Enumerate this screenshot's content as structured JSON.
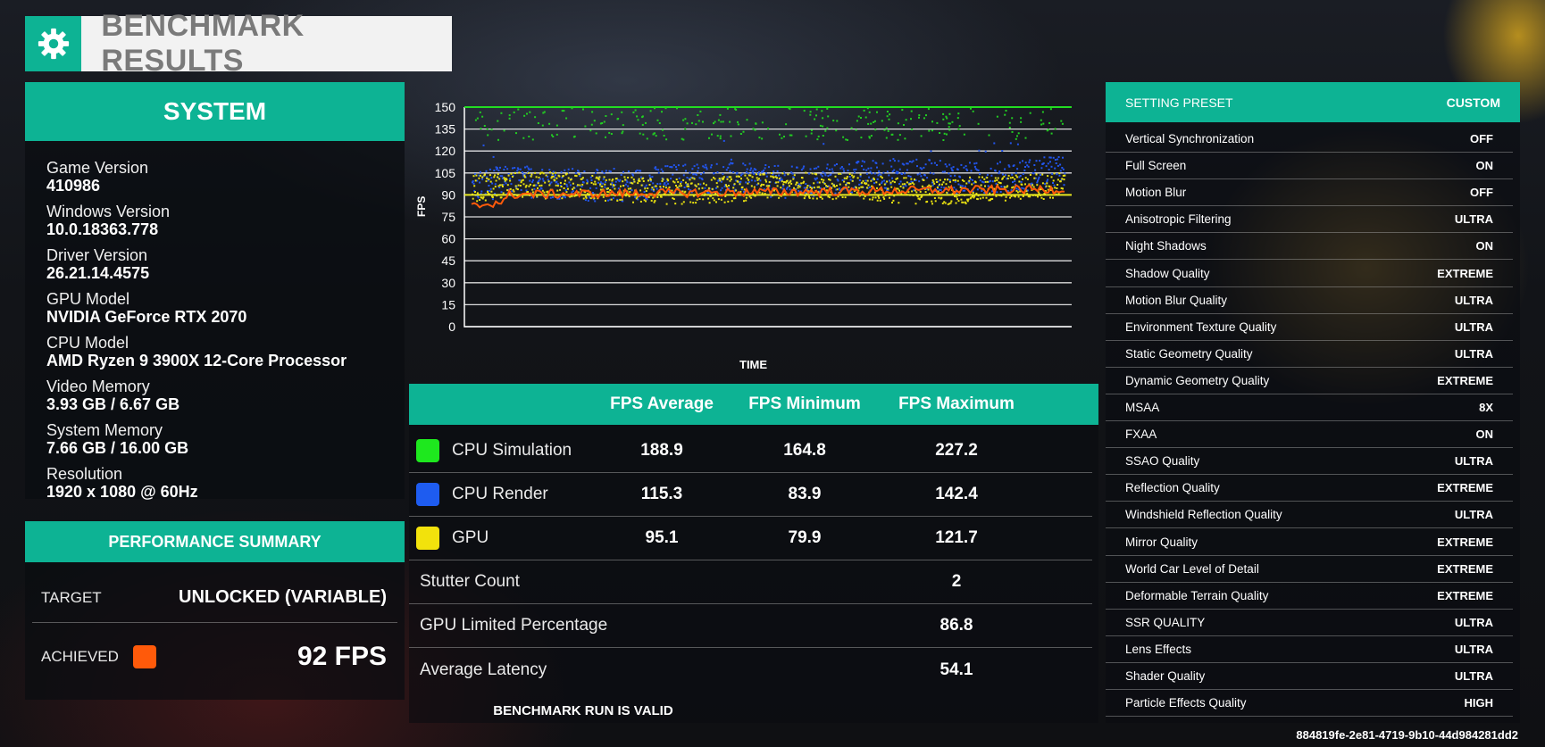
{
  "title": "BENCHMARK RESULTS",
  "system": {
    "header": "SYSTEM",
    "items": [
      {
        "label": "Game Version",
        "value": "410986"
      },
      {
        "label": "Windows Version",
        "value": "10.0.18363.778"
      },
      {
        "label": "Driver Version",
        "value": "26.21.14.4575"
      },
      {
        "label": "GPU Model",
        "value": "NVIDIA GeForce RTX 2070"
      },
      {
        "label": "CPU Model",
        "value": "AMD Ryzen 9 3900X 12-Core Processor"
      },
      {
        "label": "Video Memory",
        "value": "3.93 GB / 6.67 GB"
      },
      {
        "label": "System Memory",
        "value": "7.66 GB / 16.00 GB"
      },
      {
        "label": "Resolution",
        "value": "1920 x 1080 @ 60Hz"
      }
    ]
  },
  "performance": {
    "header": "PERFORMANCE SUMMARY",
    "target_label": "TARGET",
    "target_value": "UNLOCKED (VARIABLE)",
    "achieved_label": "ACHIEVED",
    "achieved_value": "92 FPS",
    "achieved_color": "#ff5a0a"
  },
  "chart_data": {
    "type": "scatter",
    "title": "",
    "xlabel": "TIME",
    "ylabel": "FPS",
    "ylim": [
      0,
      150
    ],
    "yticks": [
      0,
      15,
      30,
      45,
      60,
      75,
      90,
      105,
      120,
      135,
      150
    ],
    "series": [
      {
        "name": "CPU Simulation",
        "color": "#22cc22",
        "mean": 188.9,
        "min": 164.8,
        "max": 227.2
      },
      {
        "name": "CPU Render",
        "color": "#2255ee",
        "mean": 115.3,
        "min": 83.9,
        "max": 142.4
      },
      {
        "name": "GPU",
        "color": "#e8e010",
        "mean": 95.1,
        "min": 79.9,
        "max": 121.7
      }
    ],
    "achieved_line": {
      "color": "#ff5a0a",
      "value": 92
    },
    "reference_line": {
      "color": "#e8e820",
      "value": 90
    }
  },
  "results": {
    "columns": [
      "FPS Average",
      "FPS Minimum",
      "FPS Maximum"
    ],
    "rows": [
      {
        "name": "CPU Simulation",
        "color": "#1ee81e",
        "avg": "188.9",
        "min": "164.8",
        "max": "227.2"
      },
      {
        "name": "CPU Render",
        "color": "#1e5cf0",
        "avg": "115.3",
        "min": "83.9",
        "max": "142.4"
      },
      {
        "name": "GPU",
        "color": "#f2e20c",
        "avg": "95.1",
        "min": "79.9",
        "max": "121.7"
      }
    ],
    "stats": [
      {
        "label": "Stutter Count",
        "value": "2"
      },
      {
        "label": "GPU Limited Percentage",
        "value": "86.8"
      },
      {
        "label": "Average Latency",
        "value": "54.1"
      }
    ],
    "valid_text": "BENCHMARK RUN IS VALID"
  },
  "settings": {
    "preset_label": "SETTING PRESET",
    "preset_value": "CUSTOM",
    "items": [
      {
        "label": "Vertical Synchronization",
        "value": "OFF"
      },
      {
        "label": "Full Screen",
        "value": "ON"
      },
      {
        "label": "Motion Blur",
        "value": "OFF"
      },
      {
        "label": "Anisotropic Filtering",
        "value": "ULTRA"
      },
      {
        "label": "Night Shadows",
        "value": "ON"
      },
      {
        "label": "Shadow Quality",
        "value": "EXTREME"
      },
      {
        "label": "Motion Blur Quality",
        "value": "ULTRA"
      },
      {
        "label": "Environment Texture Quality",
        "value": "ULTRA"
      },
      {
        "label": "Static Geometry Quality",
        "value": "ULTRA"
      },
      {
        "label": "Dynamic Geometry Quality",
        "value": "EXTREME"
      },
      {
        "label": "MSAA",
        "value": "8X"
      },
      {
        "label": "FXAA",
        "value": "ON"
      },
      {
        "label": "SSAO Quality",
        "value": "ULTRA"
      },
      {
        "label": "Reflection Quality",
        "value": "EXTREME"
      },
      {
        "label": "Windshield Reflection Quality",
        "value": "ULTRA"
      },
      {
        "label": "Mirror Quality",
        "value": "EXTREME"
      },
      {
        "label": "World Car Level of Detail",
        "value": "EXTREME"
      },
      {
        "label": "Deformable Terrain Quality",
        "value": "EXTREME"
      },
      {
        "label": "SSR QUALITY",
        "value": "ULTRA"
      },
      {
        "label": "Lens Effects",
        "value": "ULTRA"
      },
      {
        "label": "Shader Quality",
        "value": "ULTRA"
      },
      {
        "label": "Particle Effects Quality",
        "value": "HIGH"
      }
    ]
  },
  "run_id": "884819fe-2e81-4719-9b10-44d984281dd2"
}
